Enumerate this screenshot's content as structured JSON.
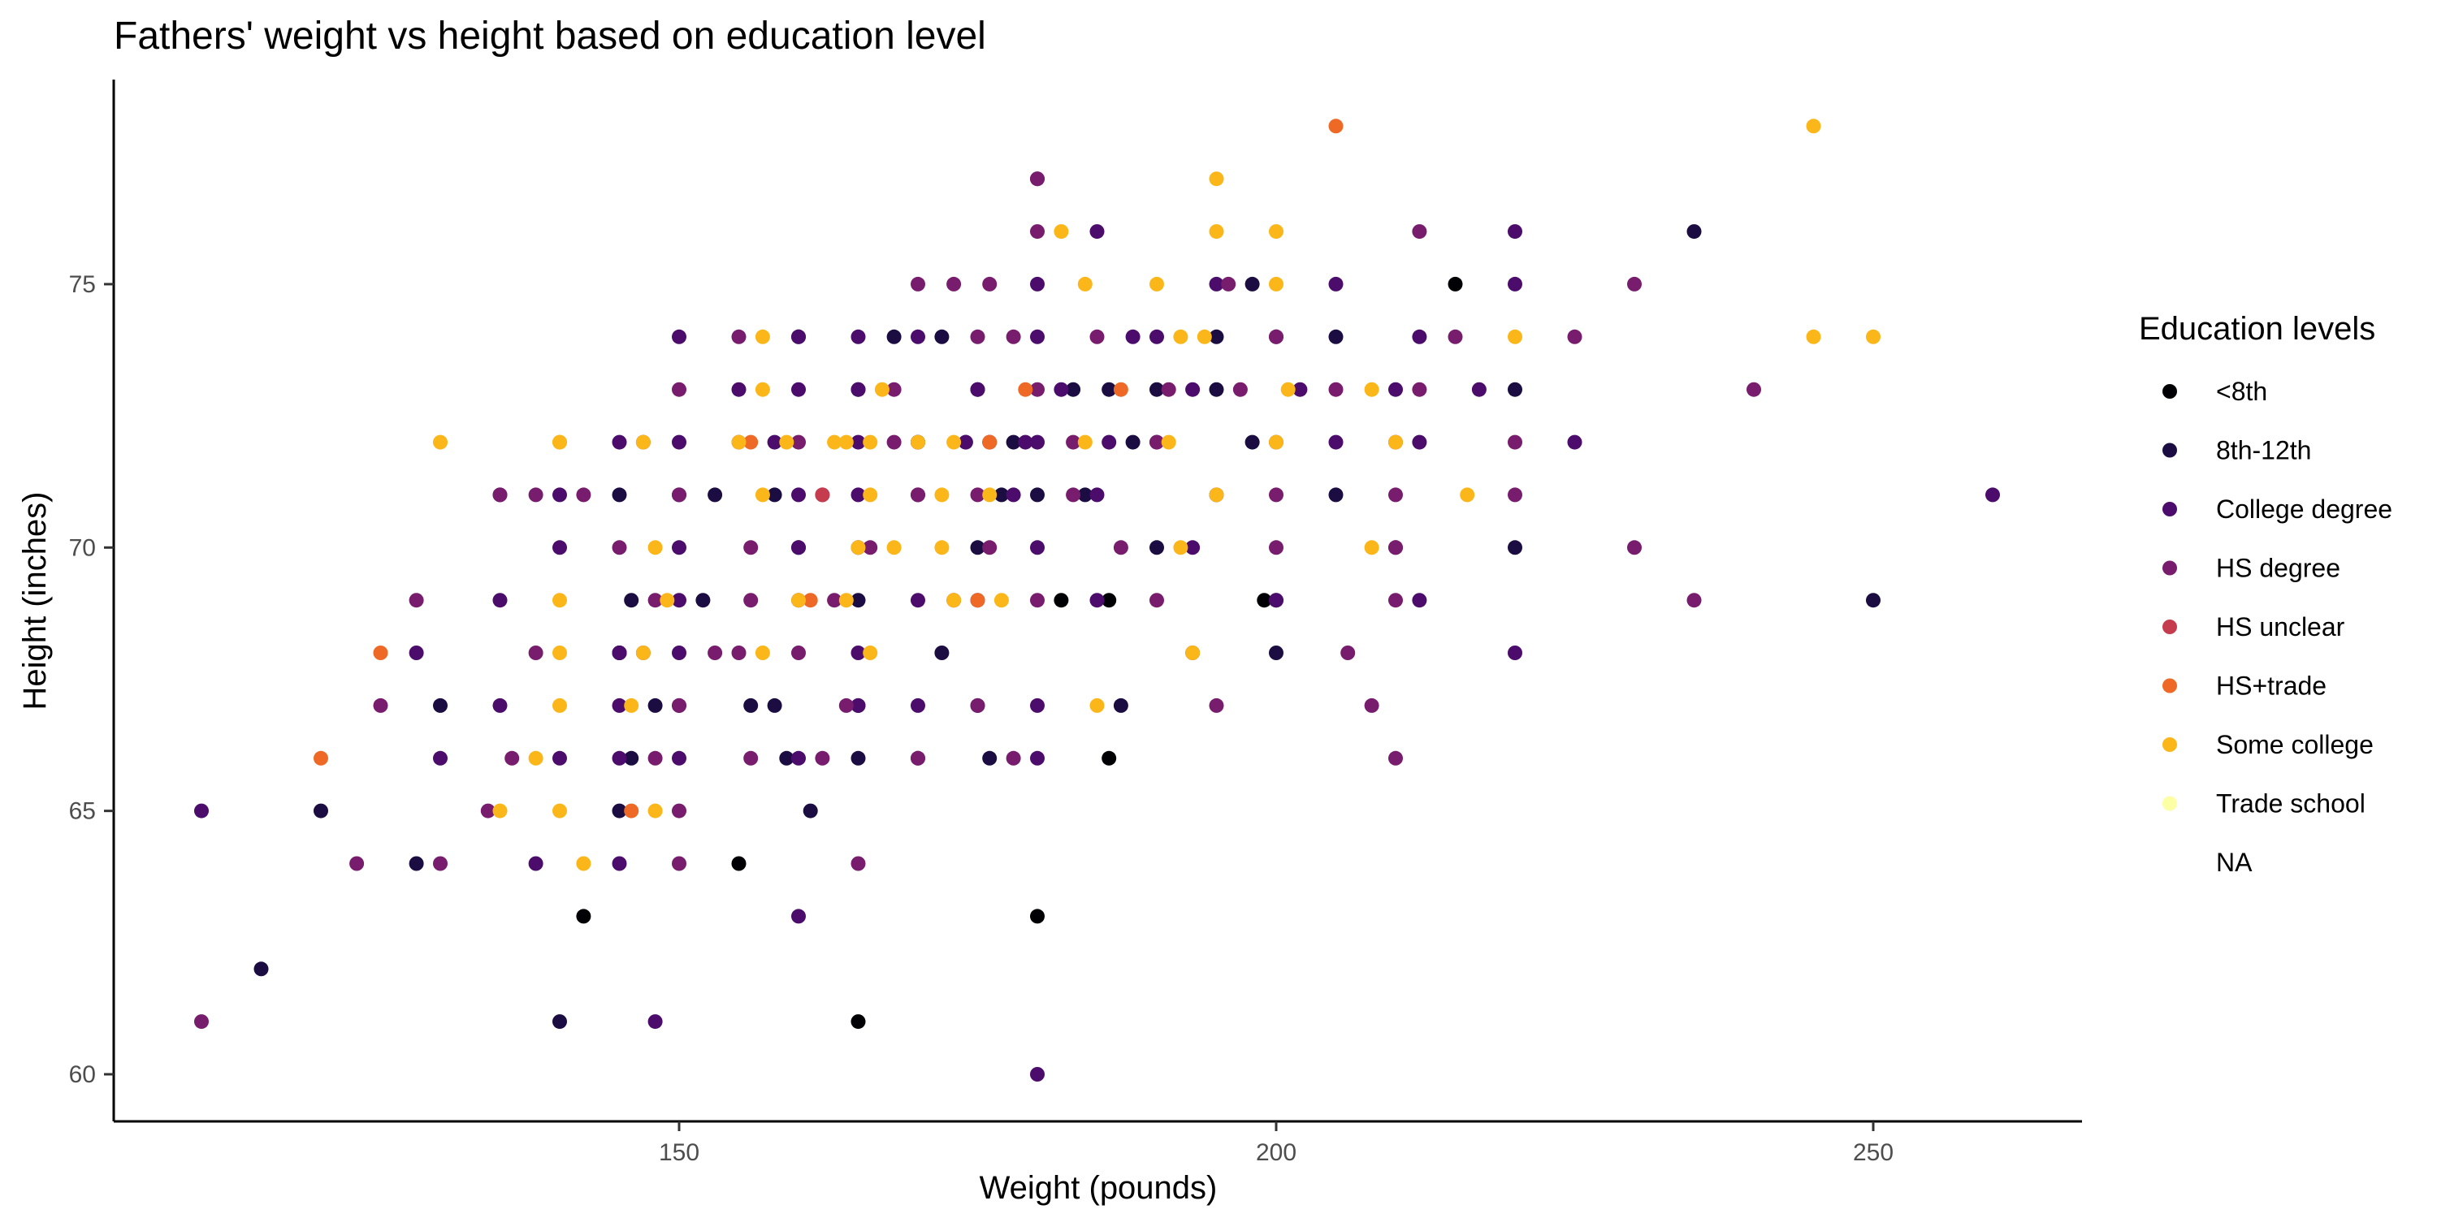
{
  "chart_data": {
    "type": "scatter",
    "title": "Fathers' weight vs height based on education level",
    "xlabel": "Weight (pounds)",
    "ylabel": "Height (inches)",
    "xlim": [
      105,
      268
    ],
    "ylim": [
      59,
      79
    ],
    "xticks": [
      150,
      200,
      250
    ],
    "yticks": [
      60,
      65,
      70,
      75
    ],
    "grid": false,
    "legend": {
      "title": "Education levels",
      "placement": "right",
      "entries": [
        {
          "name": "<8th",
          "color": "#000004"
        },
        {
          "name": "8th-12th",
          "color": "#1B0C42"
        },
        {
          "name": "College degree",
          "color": "#4B0C6B"
        },
        {
          "name": "HS degree",
          "color": "#781C6D"
        },
        {
          "name": "HS unclear",
          "color": "#C43C4E"
        },
        {
          "name": "HS+trade",
          "color": "#ED6925"
        },
        {
          "name": "Some college",
          "color": "#FBB61A"
        },
        {
          "name": "Trade school",
          "color": "#FCFFA4"
        },
        {
          "name": "NA",
          "color": "#ffffff"
        }
      ]
    },
    "series": [
      {
        "name": "<8th",
        "color": "#000004",
        "points": [
          [
            215,
            75
          ],
          [
            199,
            69
          ],
          [
            182,
            69
          ],
          [
            186,
            69
          ],
          [
            186,
            66
          ],
          [
            145,
            68
          ],
          [
            155,
            64
          ],
          [
            142,
            63
          ],
          [
            180,
            63
          ],
          [
            165,
            61
          ]
        ]
      },
      {
        "name": "8th-12th",
        "color": "#1B0C42",
        "points": [
          [
            235,
            76
          ],
          [
            198,
            75
          ],
          [
            195,
            74
          ],
          [
            205,
            74
          ],
          [
            220,
            73
          ],
          [
            168,
            74
          ],
          [
            172,
            74
          ],
          [
            195,
            73
          ],
          [
            160,
            74
          ],
          [
            165,
            73
          ],
          [
            175,
            73
          ],
          [
            183,
            73
          ],
          [
            186,
            73
          ],
          [
            190,
            73
          ],
          [
            170,
            72
          ],
          [
            178,
            72
          ],
          [
            188,
            72
          ],
          [
            198,
            72
          ],
          [
            205,
            71
          ],
          [
            195,
            71
          ],
          [
            180,
            71
          ],
          [
            184,
            71
          ],
          [
            177,
            71
          ],
          [
            158,
            71
          ],
          [
            153,
            71
          ],
          [
            145,
            71
          ],
          [
            220,
            70
          ],
          [
            190,
            70
          ],
          [
            175,
            70
          ],
          [
            160,
            70
          ],
          [
            200,
            69
          ],
          [
            165,
            69
          ],
          [
            152,
            69
          ],
          [
            146,
            69
          ],
          [
            250,
            69
          ],
          [
            200,
            68
          ],
          [
            172,
            68
          ],
          [
            145,
            68
          ],
          [
            187,
            67
          ],
          [
            176,
            66
          ],
          [
            159,
            66
          ],
          [
            146,
            66
          ],
          [
            165,
            66
          ],
          [
            130,
            67
          ],
          [
            161,
            65
          ],
          [
            120,
            65
          ],
          [
            128,
            64
          ],
          [
            115,
            62
          ],
          [
            140,
            61
          ],
          [
            156,
            67
          ],
          [
            158,
            67
          ],
          [
            165,
            67
          ],
          [
            145,
            65
          ],
          [
            148,
            67
          ]
        ]
      },
      {
        "name": "College degree",
        "color": "#4B0C6B",
        "points": [
          [
            180,
            77
          ],
          [
            185,
            76
          ],
          [
            220,
            76
          ],
          [
            180,
            75
          ],
          [
            195,
            75
          ],
          [
            205,
            75
          ],
          [
            220,
            75
          ],
          [
            150,
            74
          ],
          [
            160,
            74
          ],
          [
            165,
            74
          ],
          [
            170,
            74
          ],
          [
            180,
            74
          ],
          [
            188,
            74
          ],
          [
            190,
            74
          ],
          [
            200,
            74
          ],
          [
            212,
            74
          ],
          [
            155,
            73
          ],
          [
            160,
            73
          ],
          [
            165,
            73
          ],
          [
            175,
            73
          ],
          [
            182,
            73
          ],
          [
            193,
            73
          ],
          [
            202,
            73
          ],
          [
            210,
            73
          ],
          [
            217,
            73
          ],
          [
            225,
            72
          ],
          [
            212,
            72
          ],
          [
            205,
            72
          ],
          [
            190,
            72
          ],
          [
            186,
            72
          ],
          [
            180,
            72
          ],
          [
            174,
            72
          ],
          [
            170,
            72
          ],
          [
            165,
            72
          ],
          [
            158,
            72
          ],
          [
            150,
            72
          ],
          [
            145,
            72
          ],
          [
            260,
            71
          ],
          [
            185,
            71
          ],
          [
            178,
            71
          ],
          [
            170,
            71
          ],
          [
            165,
            71
          ],
          [
            160,
            71
          ],
          [
            150,
            71
          ],
          [
            140,
            71
          ],
          [
            135,
            71
          ],
          [
            210,
            70
          ],
          [
            193,
            70
          ],
          [
            180,
            70
          ],
          [
            165,
            70
          ],
          [
            160,
            70
          ],
          [
            150,
            70
          ],
          [
            140,
            70
          ],
          [
            212,
            69
          ],
          [
            200,
            69
          ],
          [
            185,
            69
          ],
          [
            175,
            69
          ],
          [
            170,
            69
          ],
          [
            160,
            69
          ],
          [
            150,
            69
          ],
          [
            135,
            69
          ],
          [
            220,
            68
          ],
          [
            165,
            68
          ],
          [
            150,
            68
          ],
          [
            145,
            68
          ],
          [
            128,
            68
          ],
          [
            180,
            67
          ],
          [
            175,
            67
          ],
          [
            170,
            67
          ],
          [
            165,
            67
          ],
          [
            150,
            67
          ],
          [
            145,
            67
          ],
          [
            135,
            67
          ],
          [
            180,
            66
          ],
          [
            170,
            66
          ],
          [
            160,
            66
          ],
          [
            150,
            66
          ],
          [
            145,
            66
          ],
          [
            140,
            66
          ],
          [
            130,
            66
          ],
          [
            110,
            65
          ],
          [
            145,
            64
          ],
          [
            138,
            64
          ],
          [
            160,
            63
          ],
          [
            148,
            61
          ],
          [
            180,
            60
          ],
          [
            174,
            72
          ],
          [
            179,
            72
          ]
        ]
      },
      {
        "name": "HS degree",
        "color": "#781C6D",
        "points": [
          [
            180,
            77
          ],
          [
            212,
            76
          ],
          [
            180,
            76
          ],
          [
            170,
            75
          ],
          [
            173,
            75
          ],
          [
            176,
            75
          ],
          [
            230,
            75
          ],
          [
            196,
            75
          ],
          [
            155,
            74
          ],
          [
            175,
            74
          ],
          [
            178,
            74
          ],
          [
            185,
            74
          ],
          [
            200,
            74
          ],
          [
            215,
            74
          ],
          [
            225,
            74
          ],
          [
            240,
            73
          ],
          [
            150,
            73
          ],
          [
            168,
            73
          ],
          [
            180,
            73
          ],
          [
            191,
            73
          ],
          [
            197,
            73
          ],
          [
            205,
            73
          ],
          [
            212,
            73
          ],
          [
            220,
            72
          ],
          [
            210,
            72
          ],
          [
            200,
            72
          ],
          [
            190,
            72
          ],
          [
            183,
            72
          ],
          [
            176,
            72
          ],
          [
            168,
            72
          ],
          [
            160,
            72
          ],
          [
            155,
            72
          ],
          [
            147,
            72
          ],
          [
            230,
            70
          ],
          [
            210,
            70
          ],
          [
            200,
            70
          ],
          [
            187,
            70
          ],
          [
            176,
            70
          ],
          [
            166,
            70
          ],
          [
            156,
            70
          ],
          [
            145,
            70
          ],
          [
            220,
            71
          ],
          [
            210,
            71
          ],
          [
            200,
            71
          ],
          [
            183,
            71
          ],
          [
            175,
            71
          ],
          [
            170,
            71
          ],
          [
            162,
            71
          ],
          [
            150,
            71
          ],
          [
            138,
            71
          ],
          [
            142,
            71
          ],
          [
            135,
            71
          ],
          [
            235,
            69
          ],
          [
            210,
            69
          ],
          [
            190,
            69
          ],
          [
            180,
            69
          ],
          [
            173,
            69
          ],
          [
            163,
            69
          ],
          [
            156,
            69
          ],
          [
            148,
            69
          ],
          [
            128,
            69
          ],
          [
            206,
            68
          ],
          [
            193,
            68
          ],
          [
            160,
            68
          ],
          [
            155,
            68
          ],
          [
            153,
            68
          ],
          [
            147,
            68
          ],
          [
            138,
            68
          ],
          [
            208,
            67
          ],
          [
            195,
            67
          ],
          [
            175,
            67
          ],
          [
            164,
            67
          ],
          [
            150,
            67
          ],
          [
            125,
            67
          ],
          [
            210,
            66
          ],
          [
            178,
            66
          ],
          [
            170,
            66
          ],
          [
            162,
            66
          ],
          [
            156,
            66
          ],
          [
            148,
            66
          ],
          [
            136,
            66
          ],
          [
            150,
            65
          ],
          [
            134,
            65
          ],
          [
            165,
            64
          ],
          [
            150,
            64
          ],
          [
            130,
            64
          ],
          [
            123,
            64
          ],
          [
            110,
            61
          ]
        ]
      },
      {
        "name": "HS unclear",
        "color": "#C43C4E",
        "points": [
          [
            162,
            71
          ],
          [
            176,
            72
          ]
        ]
      },
      {
        "name": "HS+trade",
        "color": "#ED6925",
        "points": [
          [
            205,
            78
          ],
          [
            179,
            73
          ],
          [
            156,
            72
          ],
          [
            176,
            72
          ],
          [
            187,
            73
          ],
          [
            161,
            69
          ],
          [
            175,
            69
          ],
          [
            146,
            65
          ],
          [
            125,
            68
          ],
          [
            120,
            66
          ]
        ]
      },
      {
        "name": "Some college",
        "color": "#FBB61A",
        "points": [
          [
            245,
            78
          ],
          [
            195,
            77
          ],
          [
            182,
            76
          ],
          [
            195,
            76
          ],
          [
            200,
            76
          ],
          [
            184,
            75
          ],
          [
            190,
            75
          ],
          [
            200,
            75
          ],
          [
            157,
            74
          ],
          [
            192,
            74
          ],
          [
            194,
            74
          ],
          [
            220,
            74
          ],
          [
            245,
            74
          ],
          [
            250,
            74
          ],
          [
            157,
            73
          ],
          [
            167,
            73
          ],
          [
            201,
            73
          ],
          [
            208,
            73
          ],
          [
            130,
            72
          ],
          [
            140,
            72
          ],
          [
            155,
            72
          ],
          [
            159,
            72
          ],
          [
            164,
            72
          ],
          [
            166,
            72
          ],
          [
            170,
            72
          ],
          [
            184,
            72
          ],
          [
            191,
            72
          ],
          [
            200,
            72
          ],
          [
            210,
            72
          ],
          [
            216,
            71
          ],
          [
            140,
            72
          ],
          [
            147,
            72
          ],
          [
            163,
            72
          ],
          [
            173,
            72
          ],
          [
            157,
            71
          ],
          [
            166,
            71
          ],
          [
            172,
            71
          ],
          [
            176,
            71
          ],
          [
            195,
            71
          ],
          [
            192,
            70
          ],
          [
            208,
            70
          ],
          [
            148,
            70
          ],
          [
            165,
            70
          ],
          [
            168,
            70
          ],
          [
            172,
            70
          ],
          [
            140,
            69
          ],
          [
            149,
            69
          ],
          [
            160,
            69
          ],
          [
            164,
            69
          ],
          [
            173,
            69
          ],
          [
            177,
            69
          ],
          [
            140,
            68
          ],
          [
            147,
            68
          ],
          [
            166,
            68
          ],
          [
            157,
            68
          ],
          [
            193,
            68
          ],
          [
            140,
            67
          ],
          [
            146,
            67
          ],
          [
            185,
            67
          ],
          [
            138,
            66
          ],
          [
            135,
            65
          ],
          [
            140,
            65
          ],
          [
            148,
            65
          ],
          [
            142,
            64
          ]
        ]
      }
    ]
  }
}
